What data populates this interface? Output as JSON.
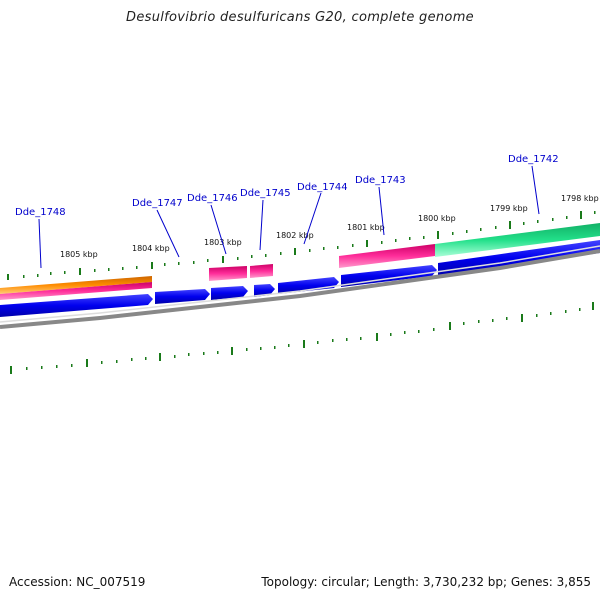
{
  "title": "Desulfovibrio desulfuricans G20, complete genome",
  "accession_text": "Accession: NC_007519",
  "summary_text": "Topology: circular; Length: 3,730,232 bp; Genes: 3,855",
  "kbp_ticks": [
    "1805 kbp",
    "1804 kbp",
    "1803 kbp",
    "1802 kbp",
    "1801 kbp",
    "1800 kbp",
    "1799 kbp",
    "1798 kbp"
  ],
  "gene_labels": [
    "Dde_1748",
    "Dde_1747",
    "Dde_1746",
    "Dde_1745",
    "Dde_1744",
    "Dde_1743",
    "Dde_1742"
  ],
  "colors": {
    "cds": "#0000ee",
    "trna": "#ff2d9a",
    "rrna_orange": "#ff8c00",
    "misc_green": "#22e08a",
    "ticks": "#1a7a1a",
    "backbone": "#888888",
    "label_line": "#0000cc"
  }
}
